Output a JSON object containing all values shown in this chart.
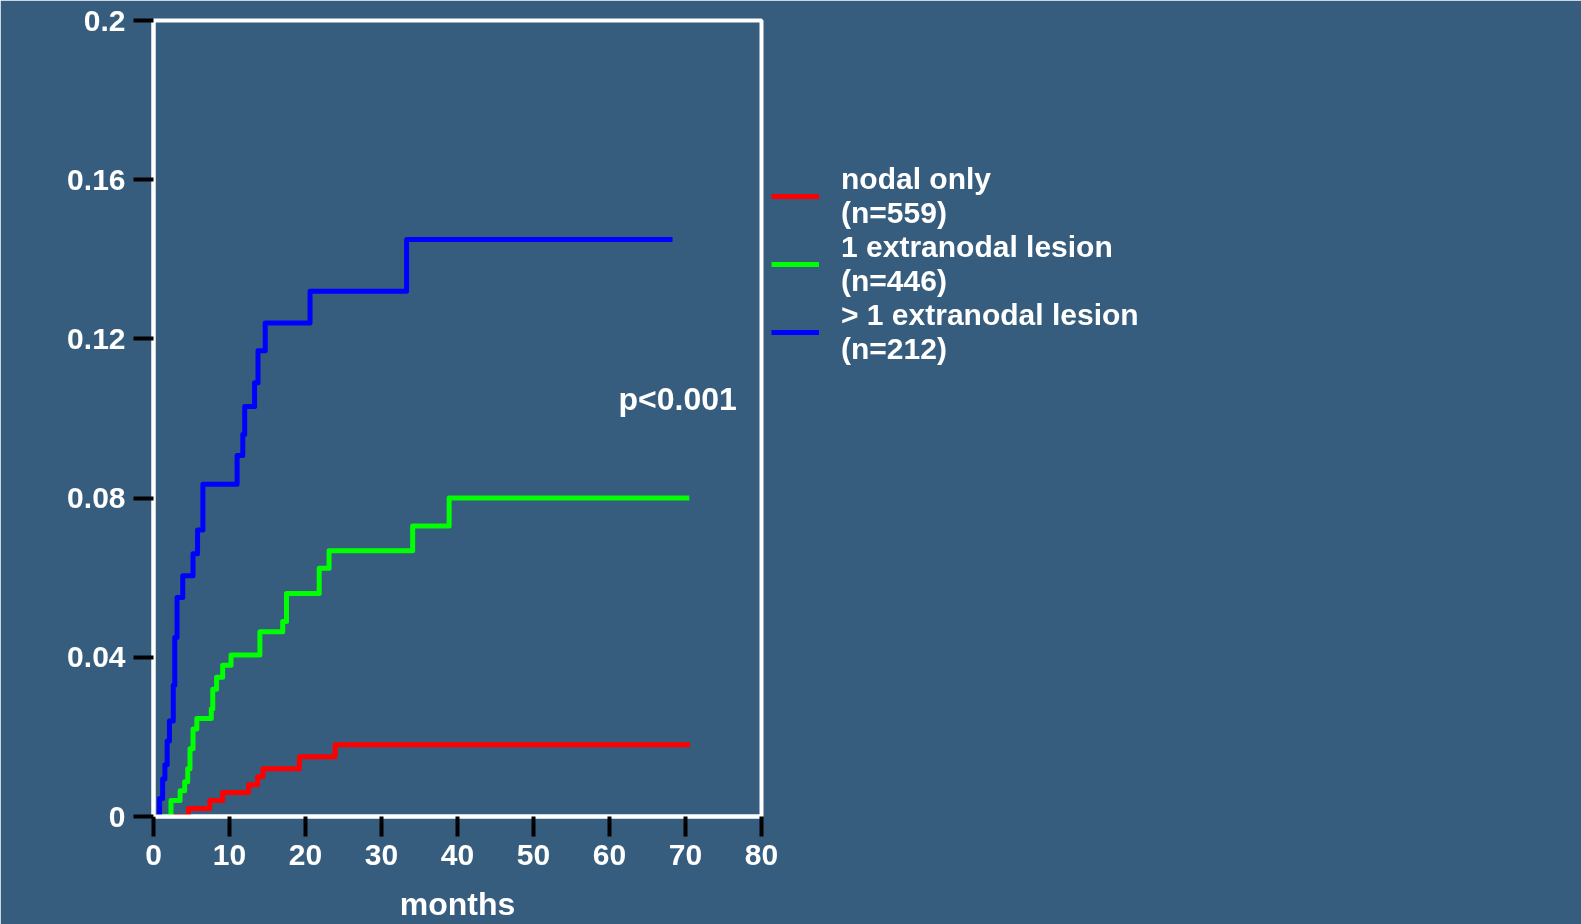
{
  "chart_data": {
    "type": "step",
    "xlabel": "months",
    "xlim": [
      0,
      80
    ],
    "ylim": [
      0,
      0.2
    ],
    "xticks": [
      0,
      10,
      20,
      30,
      40,
      50,
      60,
      70,
      80
    ],
    "yticks": [
      0,
      0.04,
      0.08,
      0.12,
      0.16,
      0.2
    ],
    "grid": false,
    "legend": "top right",
    "annotations": [
      "p<0.001"
    ],
    "series": [
      {
        "name": "nodal only\n(n=559)",
        "color": "#ff0000",
        "x": [
          2.5,
          4.6,
          7.4,
          9.1,
          12.5,
          13.7,
          14.4,
          19.2,
          23.9,
          70.6
        ],
        "values": [
          0,
          0.002,
          0.004,
          0.006,
          0.008,
          0.01,
          0.012,
          0.015,
          0.018,
          0.018
        ]
      },
      {
        "name": "1 extranodal lesion\n(n=446)",
        "color": "#00ff00",
        "x": [
          1.2,
          2.3,
          3.5,
          4.1,
          4.5,
          4.8,
          5.2,
          5.7,
          7.6,
          7.8,
          8.3,
          9.1,
          10.2,
          14,
          17,
          17.5,
          21.8,
          23.1,
          34.1,
          38.9,
          70.5
        ],
        "values": [
          0,
          0.004,
          0.0065,
          0.0087,
          0.012,
          0.017,
          0.022,
          0.0246,
          0.027,
          0.032,
          0.035,
          0.038,
          0.0406,
          0.0464,
          0.049,
          0.056,
          0.0624,
          0.0668,
          0.073,
          0.08,
          0.08
        ]
      },
      {
        "name": "> 1 extranodal lesion\n(n=212)",
        "color": "#0000ff",
        "x": [
          0.3,
          0.8,
          1.2,
          1.5,
          1.8,
          2.1,
          2.6,
          2.8,
          3.1,
          3.85,
          5.2,
          5.8,
          6.5,
          11,
          11.75,
          12.0,
          13.3,
          13.75,
          14.7,
          20.6,
          33.3,
          68.3
        ],
        "values": [
          0,
          0.0045,
          0.0094,
          0.013,
          0.019,
          0.024,
          0.033,
          0.045,
          0.055,
          0.0605,
          0.066,
          0.072,
          0.0835,
          0.0907,
          0.096,
          0.103,
          0.109,
          0.117,
          0.124,
          0.132,
          0.145,
          0.145
        ]
      }
    ]
  }
}
